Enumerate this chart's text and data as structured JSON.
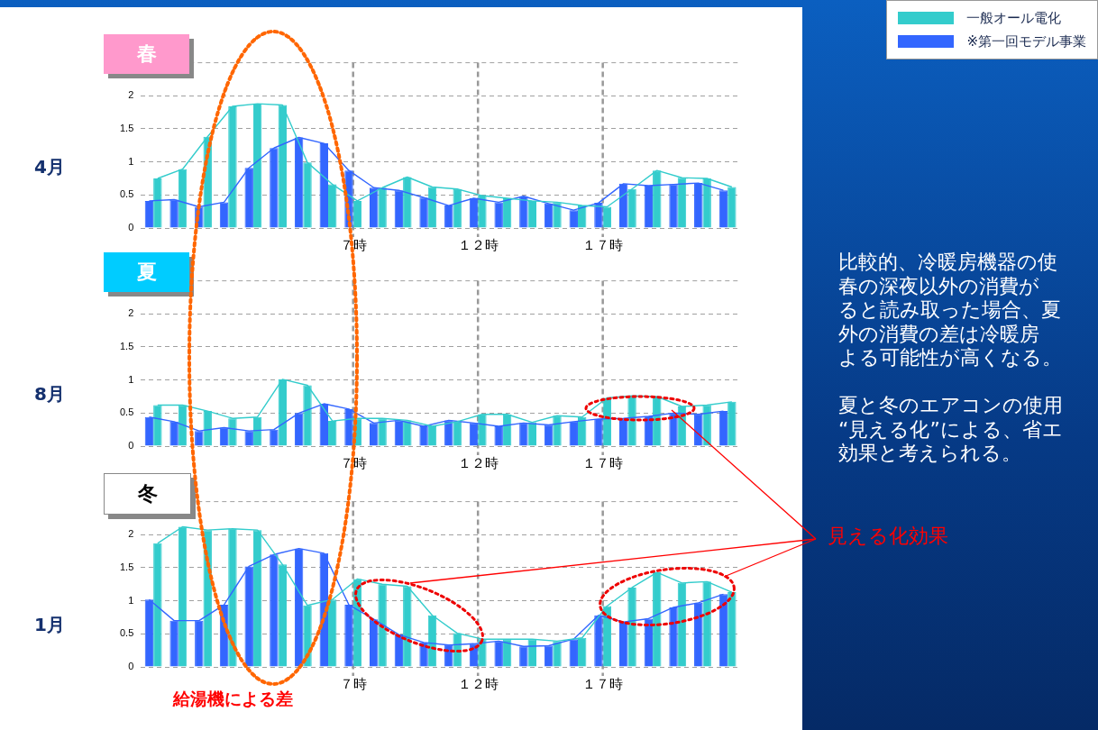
{
  "chart_data": [
    {
      "type": "bar",
      "title": "春",
      "subtitle": "4月",
      "categories": [
        null,
        null,
        null,
        null,
        null,
        null,
        null,
        null,
        "７時",
        null,
        null,
        null,
        null,
        "１２時",
        null,
        null,
        null,
        null,
        "１７時",
        null,
        null,
        null,
        null,
        null
      ],
      "series": [
        {
          "name": "一般オール電化",
          "color": "#33cccc",
          "values": [
            0.75,
            0.89,
            1.38,
            1.84,
            1.88,
            1.86,
            0.99,
            0.66,
            0.41,
            0.61,
            0.77,
            0.62,
            0.59,
            0.49,
            0.45,
            0.41,
            0.39,
            0.34,
            0.32,
            0.59,
            0.87,
            0.76,
            0.75,
            0.62
          ]
        },
        {
          "name": "※第一回モデル事業",
          "color": "#3366ff",
          "values": [
            0.41,
            0.43,
            0.32,
            0.39,
            0.91,
            1.21,
            1.37,
            1.28,
            0.87,
            0.61,
            0.57,
            0.46,
            0.34,
            0.45,
            0.39,
            0.48,
            0.37,
            0.27,
            0.38,
            0.67,
            0.64,
            0.66,
            0.68,
            0.57
          ]
        }
      ],
      "ylim": [
        0,
        2.5
      ],
      "yticks": [
        0,
        0.5,
        1,
        1.5,
        2
      ],
      "grid": "y",
      "legend": "top right",
      "ref_lines": [
        {
          "axis": "x",
          "value": "７時",
          "color": "#999999",
          "line_style": "dashed"
        },
        {
          "axis": "x",
          "value": "１２時",
          "color": "#999999",
          "line_style": "dashed"
        },
        {
          "axis": "x",
          "value": "１７時",
          "color": "#999999",
          "line_style": "dashed"
        }
      ],
      "annotations": [
        "比較的、冷暖房機器の使",
        "春の深夜以外の消費が",
        "ると読み取った場合、夏",
        "外の消費の差は冷暖房",
        "よる可能性が高くなる。",
        "夏と冬のエアコンの使用",
        "“見える化”による、省エ",
        "効果と考えられる。"
      ]
    },
    {
      "type": "bar",
      "title": "夏",
      "subtitle": "8月",
      "categories": [
        null,
        null,
        null,
        null,
        null,
        null,
        null,
        null,
        "７時",
        null,
        null,
        null,
        null,
        "１２時",
        null,
        null,
        null,
        null,
        "１７時",
        null,
        null,
        null,
        null,
        null
      ],
      "series": [
        {
          "color": "#33cccc",
          "values": [
            0.62,
            0.62,
            0.53,
            0.42,
            0.44,
            1.01,
            0.92,
            0.38,
            0.42,
            0.42,
            0.39,
            0.3,
            0.37,
            0.48,
            0.48,
            0.36,
            0.46,
            0.44,
            0.73,
            0.76,
            0.75,
            0.6,
            0.62,
            0.67
          ]
        },
        {
          "color": "#3366ff",
          "values": [
            0.44,
            0.37,
            0.23,
            0.28,
            0.23,
            0.25,
            0.5,
            0.64,
            0.56,
            0.35,
            0.39,
            0.3,
            0.39,
            0.35,
            0.3,
            0.35,
            0.32,
            0.37,
            0.41,
            0.42,
            0.45,
            0.5,
            0.48,
            0.53
          ]
        }
      ],
      "ylim": [
        0,
        2.5
      ],
      "yticks": [
        0,
        0.5,
        1,
        1.5,
        2
      ],
      "grid": "y",
      "ref_lines": [
        {
          "axis": "x",
          "value": "７時",
          "color": "#999999",
          "line_style": "dashed"
        },
        {
          "axis": "x",
          "value": "１２時",
          "color": "#999999",
          "line_style": "dashed"
        },
        {
          "axis": "x",
          "value": "１７時",
          "color": "#999999",
          "line_style": "dashed"
        }
      ]
    },
    {
      "type": "bar",
      "title": "冬",
      "subtitle": "1月",
      "categories": [
        null,
        null,
        null,
        null,
        null,
        null,
        null,
        null,
        "７時",
        null,
        null,
        null,
        null,
        "１２時",
        null,
        null,
        null,
        null,
        "１７時",
        null,
        null,
        null,
        null,
        null
      ],
      "series": [
        {
          "color": "#33cccc",
          "values": [
            1.87,
            2.12,
            2.07,
            2.09,
            2.07,
            1.55,
            0.93,
            1.02,
            1.33,
            1.25,
            1.22,
            0.78,
            0.51,
            0.42,
            0.42,
            0.42,
            0.39,
            0.44,
            0.92,
            1.2,
            1.43,
            1.27,
            1.29,
            1.13
          ]
        },
        {
          "color": "#3366ff",
          "values": [
            1.02,
            0.7,
            0.7,
            0.94,
            1.52,
            1.7,
            1.79,
            1.72,
            0.94,
            0.72,
            0.49,
            0.37,
            0.33,
            0.35,
            0.39,
            0.31,
            0.32,
            0.42,
            0.78,
            0.68,
            0.73,
            0.9,
            0.97,
            1.1
          ]
        }
      ],
      "ylim": [
        0,
        2.5
      ],
      "yticks": [
        0,
        0.5,
        1,
        1.5,
        2
      ],
      "grid": "y",
      "ref_lines": [
        {
          "axis": "x",
          "value": "７時",
          "color": "#999999",
          "line_style": "dashed"
        },
        {
          "axis": "x",
          "value": "１２時",
          "color": "#999999",
          "line_style": "dashed"
        },
        {
          "axis": "x",
          "value": "１７時",
          "color": "#999999",
          "line_style": "dashed"
        }
      ],
      "annotations": [
        "給湯機による差",
        "見える化効果"
      ]
    }
  ]
}
